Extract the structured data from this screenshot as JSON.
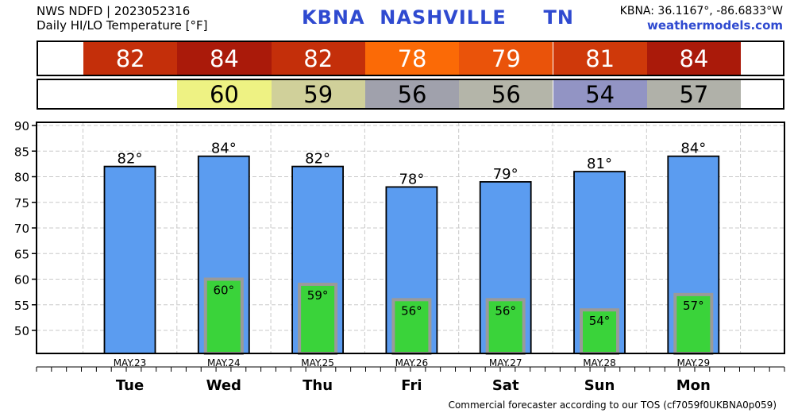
{
  "header": {
    "line1": "NWS NDFD | 2023052316",
    "line2": "Daily HI/LO Temperature [°F]",
    "station": "KBNA  NASHVILLE     TN",
    "coords": "KBNA: 36.1167°, -86.6833°W",
    "site": "weathermodels.com"
  },
  "footer": "Commercial forecaster according to our TOS (cf7059f0UKBNA0p059)",
  "colors": {
    "high_bar": "#5b9cf0",
    "low_bar": "#3ad33a",
    "low_bar_edge": "#9a9a9a"
  },
  "hi_row": [
    {
      "value": "82",
      "color": "#c42f0a"
    },
    {
      "value": "84",
      "color": "#aa1a0a"
    },
    {
      "value": "82",
      "color": "#c42f0a"
    },
    {
      "value": "78",
      "color": "#fb6a06"
    },
    {
      "value": "79",
      "color": "#ea530a"
    },
    {
      "value": "81",
      "color": "#cf390a"
    },
    {
      "value": "84",
      "color": "#aa1a0a"
    }
  ],
  "lo_row": [
    {
      "value": "",
      "color": "#ffffff"
    },
    {
      "value": "60",
      "color": "#eef283"
    },
    {
      "value": "59",
      "color": "#d0d09a"
    },
    {
      "value": "56",
      "color": "#a0a1ac"
    },
    {
      "value": "56",
      "color": "#b4b5a9"
    },
    {
      "value": "54",
      "color": "#9294c4"
    },
    {
      "value": "57",
      "color": "#b0b1a9"
    }
  ],
  "chart_data": {
    "type": "bar",
    "categories": [
      "Tue",
      "Wed",
      "Thu",
      "Fri",
      "Sat",
      "Sun",
      "Mon"
    ],
    "dates": [
      "MAY.23",
      "MAY.24",
      "MAY.25",
      "MAY.26",
      "MAY.27",
      "MAY.28",
      "MAY.29"
    ],
    "series": [
      {
        "values": [
          82,
          84,
          82,
          78,
          79,
          81,
          84
        ],
        "labels": [
          "82°",
          "84°",
          "82°",
          "78°",
          "79°",
          "81°",
          "84°"
        ]
      },
      {
        "values": [
          null,
          60,
          59,
          56,
          56,
          54,
          57
        ],
        "labels": [
          "",
          "60°",
          "59°",
          "56°",
          "56°",
          "54°",
          "57°"
        ]
      }
    ],
    "yticks": [
      "90",
      "85",
      "80",
      "75",
      "70",
      "65",
      "60",
      "55",
      "50"
    ],
    "ylim": [
      45,
      90
    ],
    "grid": true
  }
}
